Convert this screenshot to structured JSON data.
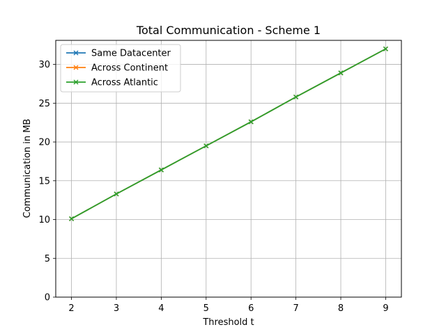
{
  "chart_data": {
    "type": "line",
    "title": "Total Communication - Scheme 1",
    "xlabel": "Threshold t",
    "ylabel": "Communication in MB",
    "x": [
      2,
      3,
      4,
      5,
      6,
      7,
      8,
      9
    ],
    "xlim": [
      1.65,
      9.35
    ],
    "ylim": [
      0,
      33.1
    ],
    "xticks": [
      2,
      3,
      4,
      5,
      6,
      7,
      8,
      9
    ],
    "yticks": [
      0,
      5,
      10,
      15,
      20,
      25,
      30
    ],
    "grid": true,
    "legend_position": "upper-left",
    "marker": "x",
    "series": [
      {
        "name": "Same Datacenter",
        "color": "#1f77b4",
        "values": [
          10.1,
          13.3,
          16.4,
          19.5,
          22.6,
          25.8,
          28.9,
          32.0
        ]
      },
      {
        "name": "Across Continent",
        "color": "#ff7f0e",
        "values": [
          10.1,
          13.3,
          16.4,
          19.5,
          22.6,
          25.8,
          28.9,
          32.0
        ]
      },
      {
        "name": "Across Atlantic",
        "color": "#2ca02c",
        "values": [
          10.1,
          13.3,
          16.4,
          19.5,
          22.6,
          25.8,
          28.9,
          32.0
        ]
      }
    ]
  }
}
